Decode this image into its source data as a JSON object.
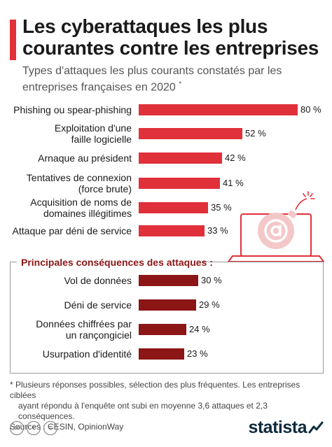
{
  "header": {
    "title": "Les cyberattaques les plus courantes contre les entreprises",
    "subtitle": "Types d'attaques les plus courants constatés par les entreprises françaises en 2020",
    "subtitle_mark": "*"
  },
  "consequences_section": {
    "title": "Principales conséquences des attaques :"
  },
  "chart_data": [
    {
      "type": "bar",
      "orientation": "horizontal",
      "categories": [
        "Phishing ou spear-phishing",
        "Exploitation d'une faille logicielle",
        "Arnaque au président",
        "Tentatives de connexion (force brute)",
        "Acquisition de noms de domaines illégitimes",
        "Attaque par déni de service"
      ],
      "values": [
        80,
        52,
        42,
        41,
        35,
        33
      ],
      "value_labels": [
        "80 %",
        "52 %",
        "42 %",
        "41 %",
        "35 %",
        "33 %"
      ],
      "color": "#e0303a",
      "xlim": [
        0,
        80
      ]
    },
    {
      "type": "bar",
      "orientation": "horizontal",
      "categories": [
        "Vol de données",
        "Déni de service",
        "Données chiffrées par un rançongiciel",
        "Usurpation d'identité"
      ],
      "values": [
        30,
        29,
        24,
        23
      ],
      "value_labels": [
        "30 %",
        "29 %",
        "24 %",
        "23 %"
      ],
      "color": "#8c1515",
      "xlim": [
        0,
        80
      ]
    }
  ],
  "footnote": {
    "line1": "* Plusieurs réponses possibles, sélection des plus fréquentes. Les entreprises ciblées",
    "line2": "ayant répondu à l'enquête ont subi en moyenne 3,6 attaques et 2,3 conséquences.",
    "sources": "Sources : CESIN, OpinionWay"
  },
  "branding": {
    "logo_text": "statista",
    "license_icons": [
      "cc",
      "i",
      "="
    ]
  },
  "illustration": {
    "icon": "laptop-email-bomb-icon",
    "color": "#e0303a"
  }
}
